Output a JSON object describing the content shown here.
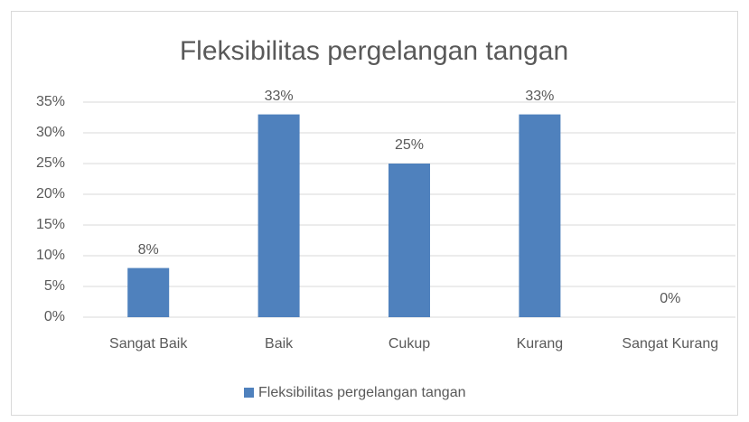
{
  "chart_data": {
    "type": "bar",
    "title": "Fleksibilitas pergelangan tangan",
    "categories": [
      "Sangat Baik",
      "Baik",
      "Cukup",
      "Kurang",
      "Sangat Kurang"
    ],
    "series": [
      {
        "name": "Fleksibilitas pergelangan tangan",
        "color": "#4f81bd",
        "values": [
          8,
          33,
          25,
          33,
          0
        ],
        "value_labels": [
          "8%",
          "33%",
          "25%",
          "33%",
          "0%"
        ]
      }
    ],
    "ylim": [
      0,
      35
    ],
    "yticks": [
      {
        "value": 0,
        "label": "0%"
      },
      {
        "value": 5,
        "label": "5%"
      },
      {
        "value": 10,
        "label": "10%"
      },
      {
        "value": 15,
        "label": "15%"
      },
      {
        "value": 20,
        "label": "20%"
      },
      {
        "value": 25,
        "label": "25%"
      },
      {
        "value": 30,
        "label": "30%"
      },
      {
        "value": 35,
        "label": "35%"
      }
    ],
    "grid": true,
    "legend": "bottom"
  }
}
